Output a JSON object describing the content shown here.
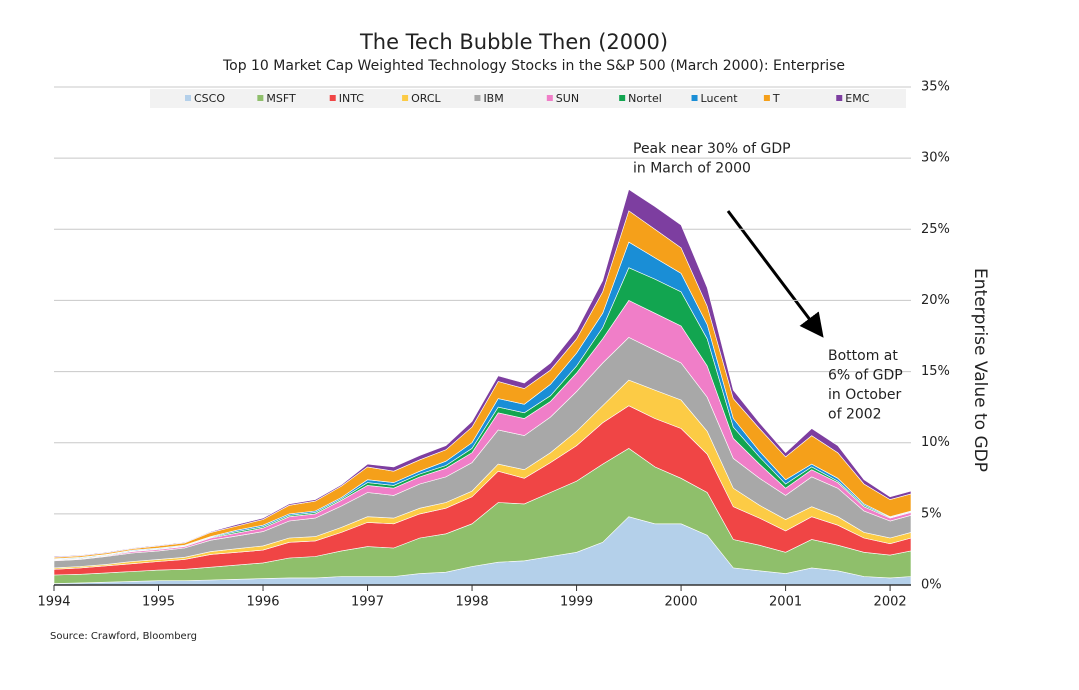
{
  "chart_data": {
    "type": "stacked_area",
    "title": "The Tech Bubble Then (2000)",
    "subtitle": "Top 10 Market Cap Weighted Technology Stocks in the S&P 500 (March 2000): Enterprise",
    "y_label": "Enterprise Value to GDP",
    "source": "Source: Crawford, Bloomberg",
    "annotations": [
      [
        "Peak near 30% of GDP",
        "in March of 2000"
      ],
      [
        "Bottom at",
        "6% of GDP",
        "in October",
        "of 2002"
      ]
    ],
    "x": [
      1994,
      1994.25,
      1994.5,
      1994.75,
      1995,
      1995.25,
      1995.5,
      1995.75,
      1996,
      1996.25,
      1996.5,
      1996.75,
      1997,
      1997.25,
      1997.5,
      1997.75,
      1998,
      1998.25,
      1998.5,
      1998.75,
      1999,
      1999.25,
      1999.5,
      1999.75,
      2000,
      2000.25,
      2000.5,
      2000.75,
      2001,
      2001.25,
      2001.5,
      2001.75,
      2002,
      2002.2
    ],
    "xlim": [
      1994,
      2002.2
    ],
    "xticks": [
      1994,
      1995,
      1996,
      1997,
      1998,
      1999,
      2000,
      2001,
      2002
    ],
    "ylim": [
      0,
      35
    ],
    "yticks": [
      {
        "value": 0,
        "label": "0%"
      },
      {
        "value": 5,
        "label": "5%"
      },
      {
        "value": 10,
        "label": "10%"
      },
      {
        "value": 15,
        "label": "15%"
      },
      {
        "value": 20,
        "label": "20%"
      },
      {
        "value": 25,
        "label": "25%"
      },
      {
        "value": 30,
        "label": "30%"
      },
      {
        "value": 35,
        "label": "35%"
      }
    ],
    "grid": true,
    "legend": "top",
    "series": [
      {
        "name": "CSCO",
        "color": "#b4d0ea",
        "values": [
          0.1,
          0.15,
          0.2,
          0.25,
          0.3,
          0.3,
          0.35,
          0.4,
          0.45,
          0.5,
          0.5,
          0.6,
          0.6,
          0.6,
          0.8,
          0.9,
          1.3,
          1.6,
          1.7,
          2.0,
          2.3,
          3.0,
          4.8,
          4.3,
          4.3,
          3.5,
          1.2,
          1.0,
          0.8,
          1.2,
          1.0,
          0.6,
          0.5,
          0.6
        ]
      },
      {
        "name": "MSFT",
        "color": "#8fbf6b",
        "values": [
          0.6,
          0.6,
          0.65,
          0.7,
          0.75,
          0.8,
          0.9,
          1.0,
          1.1,
          1.4,
          1.5,
          1.8,
          2.1,
          2.0,
          2.5,
          2.7,
          3.0,
          4.2,
          4.0,
          4.5,
          5.0,
          5.5,
          4.8,
          4.0,
          3.2,
          3.0,
          2.0,
          1.8,
          1.5,
          2.0,
          1.8,
          1.7,
          1.6,
          1.8
        ]
      },
      {
        "name": "INTC",
        "color": "#f04545",
        "values": [
          0.4,
          0.45,
          0.5,
          0.55,
          0.6,
          0.7,
          0.9,
          0.9,
          0.9,
          1.1,
          1.1,
          1.3,
          1.7,
          1.7,
          1.7,
          1.8,
          1.9,
          2.2,
          1.8,
          2.1,
          2.5,
          2.9,
          3.0,
          3.4,
          3.5,
          2.7,
          2.3,
          1.9,
          1.5,
          1.6,
          1.4,
          1.0,
          0.8,
          0.9
        ]
      },
      {
        "name": "ORCL",
        "color": "#fccb45",
        "values": [
          0.1,
          0.1,
          0.1,
          0.15,
          0.15,
          0.15,
          0.2,
          0.25,
          0.3,
          0.3,
          0.3,
          0.35,
          0.4,
          0.4,
          0.4,
          0.4,
          0.4,
          0.5,
          0.6,
          0.7,
          1.0,
          1.2,
          1.8,
          2.0,
          2.0,
          1.6,
          1.3,
          0.9,
          0.8,
          0.7,
          0.6,
          0.4,
          0.4,
          0.4
        ]
      },
      {
        "name": "IBM",
        "color": "#a8a8a8",
        "values": [
          0.5,
          0.5,
          0.55,
          0.6,
          0.6,
          0.65,
          0.8,
          0.9,
          1.0,
          1.2,
          1.3,
          1.5,
          1.7,
          1.6,
          1.7,
          1.8,
          2.0,
          2.4,
          2.4,
          2.5,
          2.8,
          3.0,
          3.0,
          2.8,
          2.6,
          2.4,
          2.1,
          1.9,
          1.7,
          2.1,
          2.0,
          1.5,
          1.2,
          1.2
        ]
      },
      {
        "name": "SUN",
        "color": "#f07ec8",
        "values": [
          0.05,
          0.05,
          0.05,
          0.1,
          0.1,
          0.1,
          0.15,
          0.2,
          0.25,
          0.3,
          0.3,
          0.4,
          0.5,
          0.5,
          0.5,
          0.6,
          0.7,
          1.2,
          1.2,
          1.1,
          1.3,
          1.7,
          2.6,
          2.6,
          2.6,
          2.2,
          1.4,
          1.0,
          0.5,
          0.5,
          0.4,
          0.3,
          0.2,
          0.2
        ]
      },
      {
        "name": "Nortel",
        "color": "#12a550",
        "values": [
          0.05,
          0.05,
          0.05,
          0.05,
          0.05,
          0.05,
          0.05,
          0.1,
          0.1,
          0.1,
          0.1,
          0.1,
          0.2,
          0.2,
          0.2,
          0.2,
          0.3,
          0.4,
          0.4,
          0.4,
          0.5,
          0.8,
          2.3,
          2.4,
          2.4,
          1.9,
          0.8,
          0.5,
          0.3,
          0.2,
          0.1,
          0.1,
          0.05,
          0.05
        ]
      },
      {
        "name": "Lucent",
        "color": "#1a8ed6",
        "values": [
          0.05,
          0.05,
          0.05,
          0.05,
          0.05,
          0.05,
          0.05,
          0.1,
          0.1,
          0.1,
          0.1,
          0.1,
          0.2,
          0.2,
          0.2,
          0.3,
          0.4,
          0.6,
          0.6,
          0.8,
          0.9,
          1.0,
          1.8,
          1.5,
          1.3,
          1.0,
          0.6,
          0.4,
          0.3,
          0.2,
          0.2,
          0.1,
          0.05,
          0.05
        ]
      },
      {
        "name": "T",
        "color": "#f5a01a",
        "values": [
          0.1,
          0.1,
          0.1,
          0.1,
          0.15,
          0.15,
          0.3,
          0.3,
          0.4,
          0.6,
          0.7,
          0.8,
          0.9,
          0.8,
          0.8,
          0.8,
          1.1,
          1.2,
          1.1,
          1.0,
          1.0,
          1.5,
          2.2,
          2.0,
          1.8,
          1.3,
          1.4,
          1.6,
          1.6,
          2.0,
          1.8,
          1.4,
          1.2,
          1.2
        ]
      },
      {
        "name": "EMC",
        "color": "#7d3ea0",
        "values": [
          0.05,
          0.05,
          0.05,
          0.05,
          0.05,
          0.05,
          0.05,
          0.1,
          0.1,
          0.1,
          0.1,
          0.1,
          0.2,
          0.3,
          0.3,
          0.3,
          0.4,
          0.4,
          0.4,
          0.5,
          0.6,
          0.8,
          1.5,
          1.6,
          1.6,
          1.3,
          0.6,
          0.4,
          0.3,
          0.5,
          0.5,
          0.3,
          0.2,
          0.2
        ]
      }
    ]
  }
}
